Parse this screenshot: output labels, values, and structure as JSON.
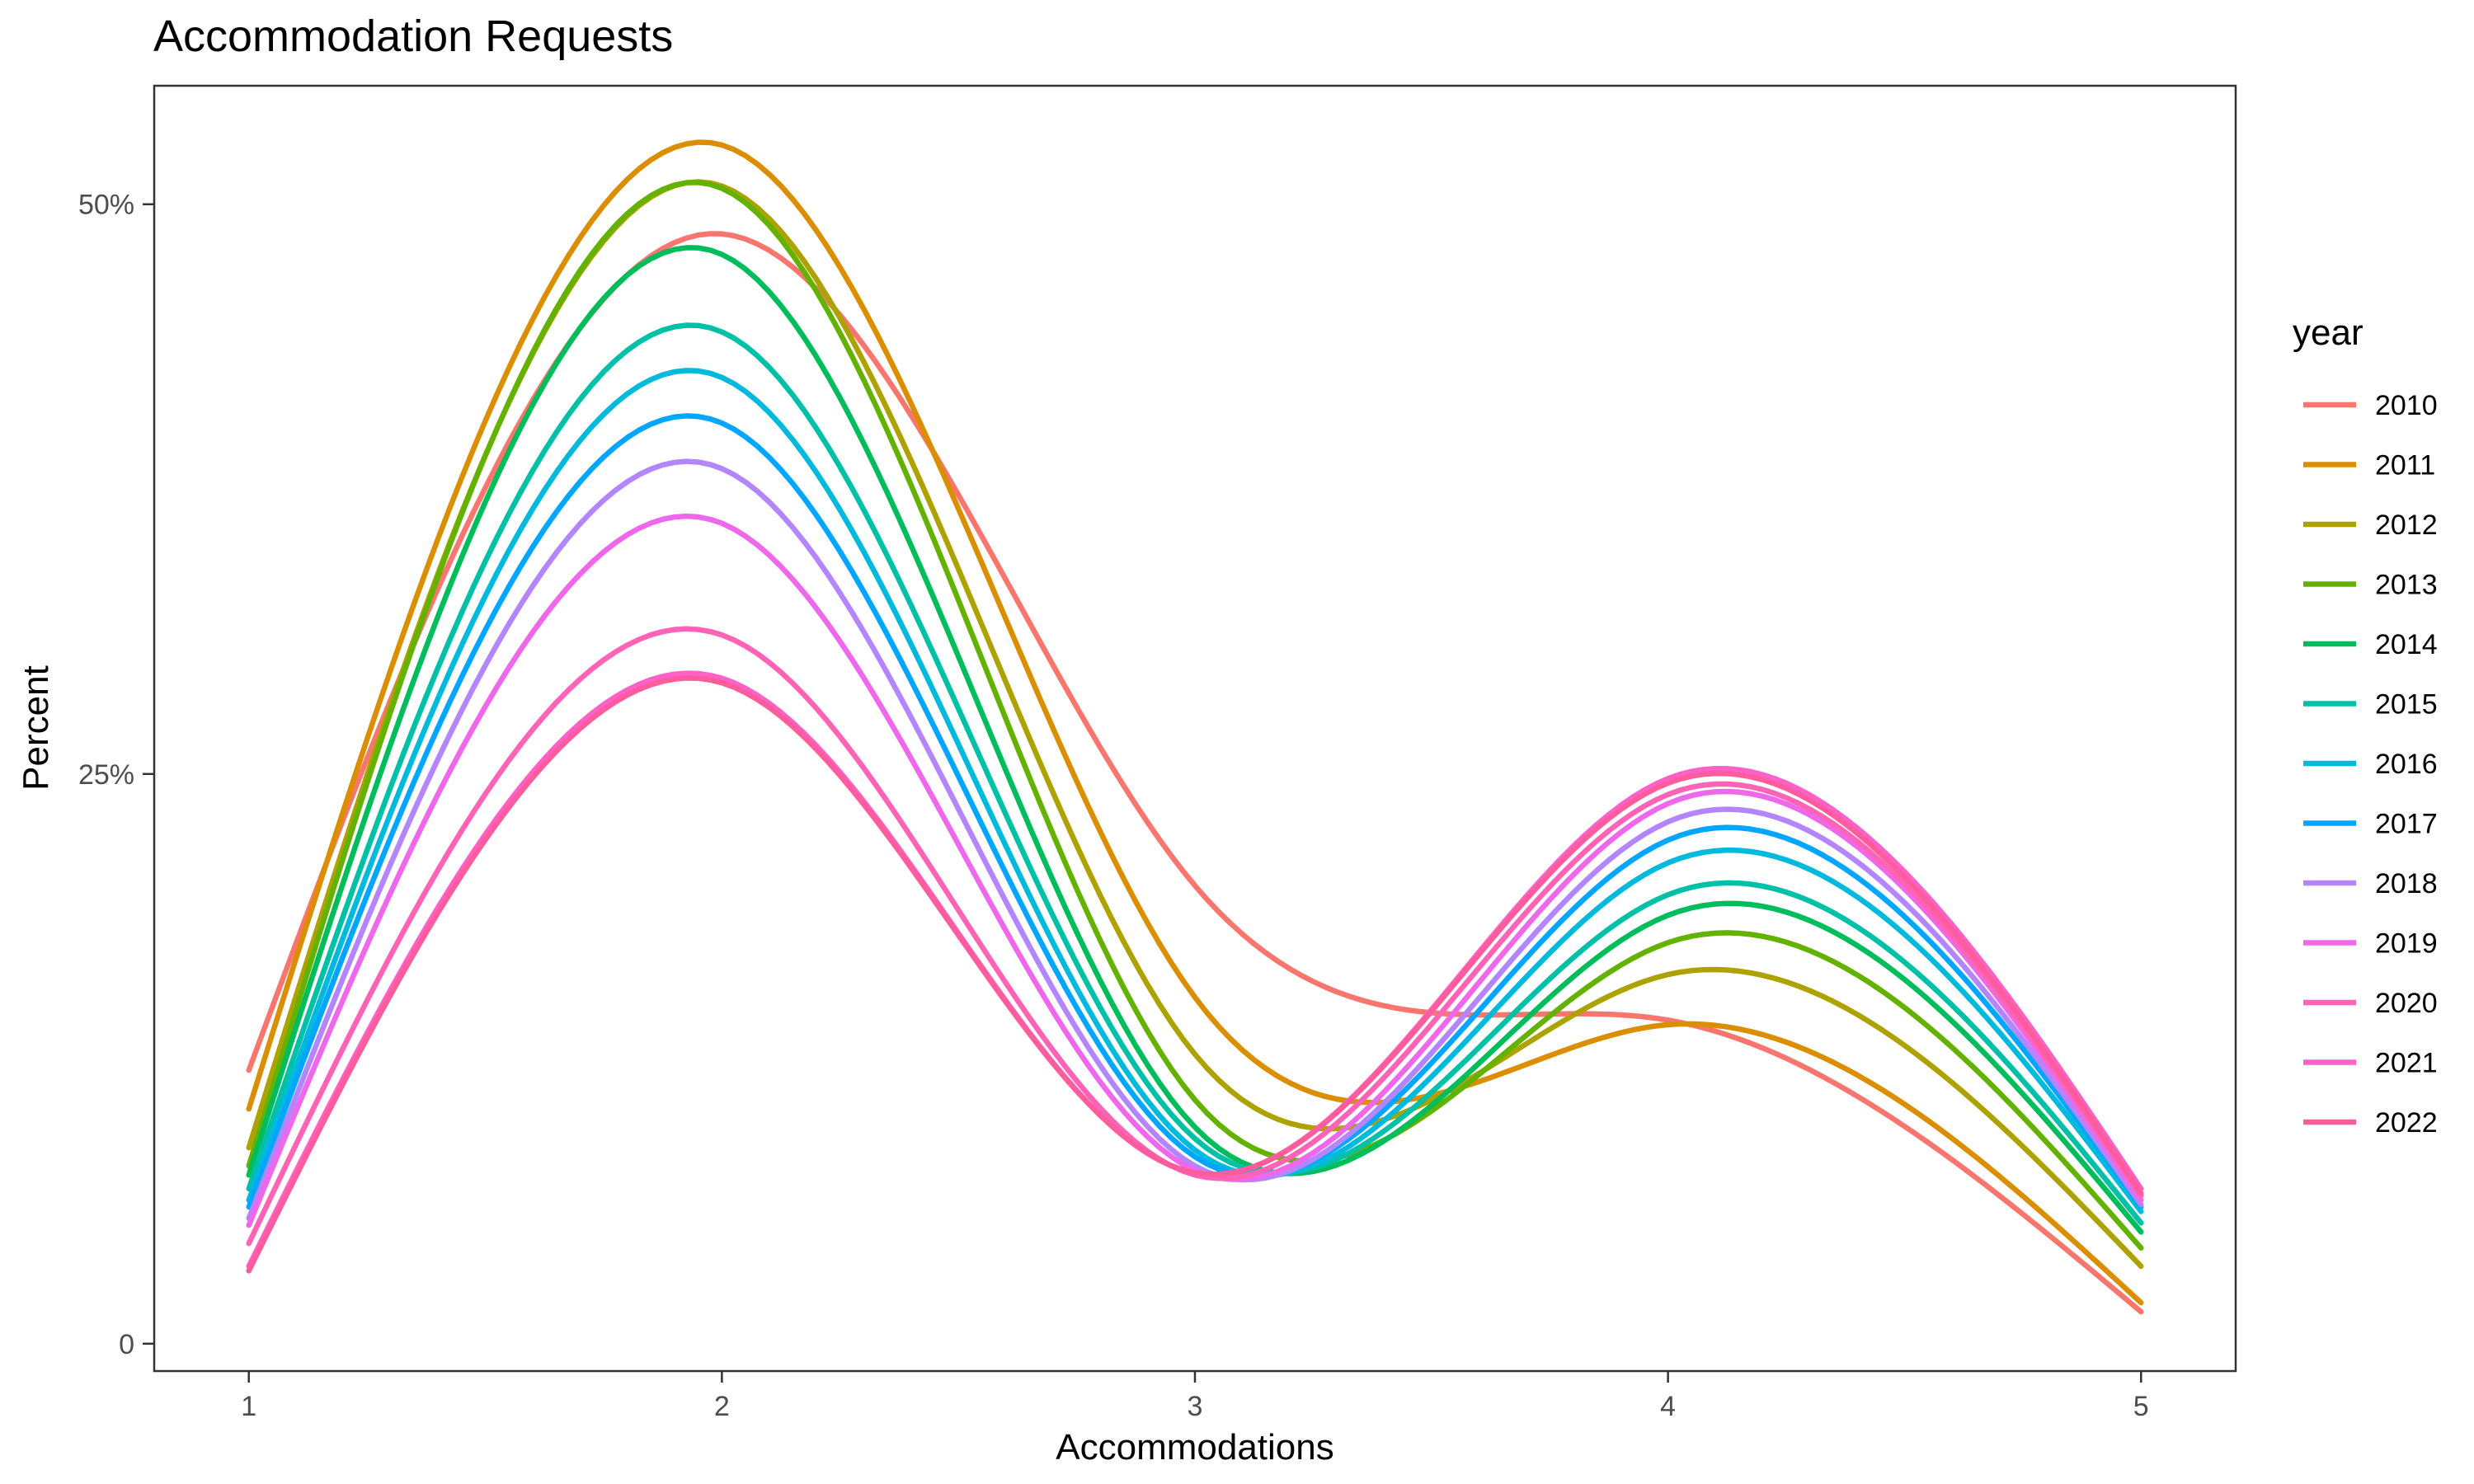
{
  "chart_data": {
    "type": "line",
    "title": "Accommodation Requests",
    "xlabel": "Accommodations",
    "ylabel": "Percent",
    "x": [
      1,
      2,
      3,
      4,
      5
    ],
    "x_ticks": [
      1,
      2,
      3,
      4,
      5
    ],
    "x_tick_labels": [
      "1",
      "2",
      "3",
      "4",
      "5"
    ],
    "y_ticks": [
      0,
      25,
      50
    ],
    "y_tick_labels": [
      "0",
      "25%",
      "50%"
    ],
    "xlim": [
      0.8,
      5.2
    ],
    "ylim": [
      -1.2,
      55.2
    ],
    "legend_title": "year",
    "legend_position": "right",
    "grid": false,
    "series": [
      {
        "name": "2010",
        "color": "#F8766D",
        "values": [
          12.0,
          48.7,
          20.1,
          14.2,
          1.4
        ]
      },
      {
        "name": "2011",
        "color": "#DB8E00",
        "values": [
          10.3,
          52.6,
          15.2,
          14.0,
          1.8
        ]
      },
      {
        "name": "2012",
        "color": "#AEA200",
        "values": [
          8.6,
          50.8,
          12.7,
          16.2,
          3.4
        ]
      },
      {
        "name": "2013",
        "color": "#64B200",
        "values": [
          7.8,
          50.7,
          10.7,
          17.6,
          4.2
        ]
      },
      {
        "name": "2014",
        "color": "#00BD5C",
        "values": [
          7.4,
          47.8,
          9.5,
          18.8,
          4.9
        ]
      },
      {
        "name": "2015",
        "color": "#00C1A7",
        "values": [
          6.8,
          44.4,
          9.0,
          19.7,
          5.3
        ]
      },
      {
        "name": "2016",
        "color": "#00BADE",
        "values": [
          6.3,
          42.4,
          8.5,
          21.1,
          5.8
        ]
      },
      {
        "name": "2017",
        "color": "#00A6FF",
        "values": [
          6.0,
          40.4,
          8.2,
          22.1,
          6.0
        ]
      },
      {
        "name": "2018",
        "color": "#B385FF",
        "values": [
          5.5,
          38.4,
          7.8,
          22.9,
          6.1
        ]
      },
      {
        "name": "2019",
        "color": "#EF67EB",
        "values": [
          5.2,
          36.0,
          7.6,
          23.7,
          6.3
        ]
      },
      {
        "name": "2020",
        "color": "#FF63B6",
        "values": [
          4.4,
          31.1,
          7.4,
          24.1,
          6.5
        ]
      },
      {
        "name": "2021",
        "color": "#FF61C9",
        "values": [
          3.4,
          29.2,
          7.5,
          24.8,
          6.8
        ]
      },
      {
        "name": "2022",
        "color": "#FF5C9E",
        "values": [
          3.2,
          29.0,
          7.5,
          24.6,
          6.6
        ]
      }
    ]
  }
}
